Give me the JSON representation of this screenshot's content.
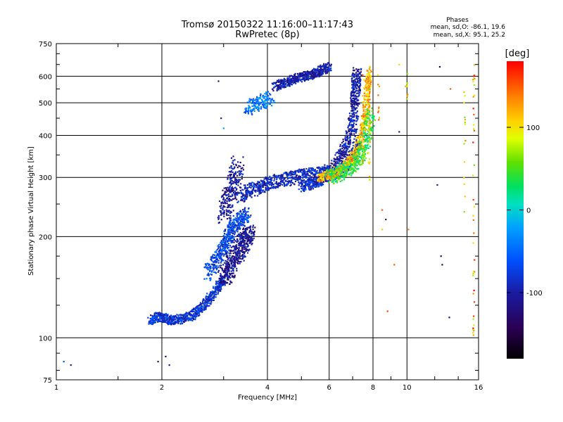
{
  "chart_data": {
    "type": "scatter",
    "title": "Tromsø 20150322 11:16:00–11:17:43",
    "subtitle": "RwPretec (8p)",
    "xlabel": "Frequency [MHz]",
    "ylabel": "Stationary phase Virtual Height [km]",
    "x_scale": "log",
    "y_scale": "log",
    "xlim": [
      1,
      16
    ],
    "ylim": [
      75,
      750
    ],
    "x_ticks": [
      1,
      2,
      4,
      6,
      8,
      10,
      16
    ],
    "x_tick_labels": [
      "1",
      "2",
      "4",
      "6",
      "8",
      "10",
      "16"
    ],
    "y_ticks": [
      75,
      100,
      200,
      300,
      400,
      500,
      600,
      750
    ],
    "y_tick_labels": [
      "75",
      "100",
      "200",
      "300",
      "400",
      "500",
      "600",
      "750"
    ],
    "grid": true,
    "stats": {
      "heading": "Phases",
      "line_o": "mean, sd,O: -86.1, 19.6",
      "line_x": "mean, sd,X: 95.1, 25.2"
    },
    "colorbar": {
      "label": "[deg]",
      "range": [
        -180,
        180
      ],
      "ticks": [
        100,
        0,
        -100
      ],
      "tick_labels": [
        "100",
        "0",
        "-100"
      ]
    },
    "traces": [
      {
        "x": [
          1.85,
          1.95,
          2.05,
          2.15,
          2.3,
          2.45,
          2.6,
          2.75,
          2.9,
          3.0
        ],
        "y": [
          112,
          116,
          114,
          113,
          114,
          117,
          123,
          132,
          142,
          150
        ],
        "phase": -80,
        "spread": 0.02
      },
      {
        "x": [
          2.7,
          2.85,
          3.0,
          3.1,
          3.2,
          3.35,
          3.5
        ],
        "y": [
          155,
          170,
          185,
          200,
          215,
          225,
          235
        ],
        "phase": -70,
        "spread": 0.03
      },
      {
        "x": [
          3.0,
          3.1,
          3.2,
          3.3,
          3.4,
          3.5,
          3.55
        ],
        "y": [
          150,
          160,
          170,
          180,
          190,
          200,
          205
        ],
        "phase": -110,
        "spread": 0.04
      },
      {
        "x": [
          3.0,
          3.1,
          3.2,
          3.3
        ],
        "y": [
          230,
          260,
          290,
          330
        ],
        "phase": -105,
        "spread": 0.04
      },
      {
        "x": [
          3.3,
          3.6,
          3.9,
          4.2,
          4.6,
          5.0,
          5.4,
          5.8,
          6.0
        ],
        "y": [
          265,
          275,
          285,
          292,
          298,
          303,
          306,
          308,
          312
        ],
        "phase": -90,
        "spread": 0.03
      },
      {
        "x": [
          5.0,
          5.4,
          5.8,
          6.2,
          6.6,
          7.0,
          7.3
        ],
        "y": [
          280,
          288,
          296,
          305,
          318,
          340,
          380
        ],
        "phase": -85,
        "spread": 0.02
      },
      {
        "x": [
          6.2,
          6.5,
          6.8,
          7.0,
          7.1,
          7.15,
          7.2
        ],
        "y": [
          320,
          345,
          380,
          430,
          500,
          560,
          620
        ],
        "phase": -100,
        "spread": 0.03
      },
      {
        "x": [
          5.6,
          6.0,
          6.4,
          6.8,
          7.2,
          7.5,
          7.7,
          7.8
        ],
        "y": [
          300,
          305,
          315,
          330,
          360,
          420,
          520,
          620
        ],
        "phase": 120,
        "spread": 0.02
      },
      {
        "x": [
          6.0,
          6.5,
          7.0,
          7.4,
          7.7,
          7.9
        ],
        "y": [
          300,
          310,
          325,
          350,
          400,
          470
        ],
        "phase": 40,
        "spread": 0.03
      },
      {
        "x": [
          4.2,
          4.5,
          4.8,
          5.1,
          5.4,
          5.7,
          6.0
        ],
        "y": [
          560,
          575,
          590,
          600,
          610,
          625,
          640
        ],
        "phase": -100,
        "spread": 0.02
      },
      {
        "x": [
          3.5,
          3.8,
          4.1
        ],
        "y": [
          480,
          500,
          520
        ],
        "phase": -40,
        "spread": 0.03
      }
    ],
    "points": [
      {
        "x": 1.05,
        "y": 85,
        "phase": -60
      },
      {
        "x": 1.1,
        "y": 83,
        "phase": -110
      },
      {
        "x": 1.95,
        "y": 85,
        "phase": -120
      },
      {
        "x": 2.05,
        "y": 88,
        "phase": -130
      },
      {
        "x": 2.1,
        "y": 83,
        "phase": -110
      },
      {
        "x": 2.9,
        "y": 580,
        "phase": -120
      },
      {
        "x": 2.95,
        "y": 450,
        "phase": -110
      },
      {
        "x": 3.0,
        "y": 420,
        "phase": -20
      },
      {
        "x": 8.5,
        "y": 210,
        "phase": 110
      },
      {
        "x": 8.5,
        "y": 240,
        "phase": 150
      },
      {
        "x": 8.7,
        "y": 225,
        "phase": -120
      },
      {
        "x": 8.8,
        "y": 120,
        "phase": 160
      },
      {
        "x": 9.2,
        "y": 165,
        "phase": 150
      },
      {
        "x": 9.5,
        "y": 410,
        "phase": -110
      },
      {
        "x": 10.1,
        "y": 210,
        "phase": 140
      },
      {
        "x": 9.9,
        "y": 560,
        "phase": 120
      },
      {
        "x": 9.5,
        "y": 650,
        "phase": 110
      },
      {
        "x": 12.4,
        "y": 640,
        "phase": -150
      },
      {
        "x": 12.2,
        "y": 285,
        "phase": -110
      },
      {
        "x": 12.5,
        "y": 175,
        "phase": -130
      },
      {
        "x": 12.6,
        "y": 165,
        "phase": -140
      },
      {
        "x": 13.2,
        "y": 115,
        "phase": -140
      },
      {
        "x": 13.3,
        "y": 550,
        "phase": 150
      },
      {
        "x": 15.5,
        "y": 600,
        "phase": 170
      },
      {
        "x": 15.5,
        "y": 430,
        "phase": 100
      }
    ],
    "columns": [
      {
        "x": 7.8,
        "y_min": 290,
        "y_max": 660,
        "count": 40,
        "phase_range": [
          60,
          140
        ]
      },
      {
        "x": 7.5,
        "y_min": 330,
        "y_max": 640,
        "count": 20,
        "phase_range": [
          80,
          150
        ]
      },
      {
        "x": 8.3,
        "y_min": 430,
        "y_max": 640,
        "count": 10,
        "phase_range": [
          100,
          160
        ]
      },
      {
        "x": 10.0,
        "y_min": 470,
        "y_max": 630,
        "count": 8,
        "phase_range": [
          60,
          130
        ]
      },
      {
        "x": 14.6,
        "y_min": 200,
        "y_max": 560,
        "count": 14,
        "phase_range": [
          60,
          140
        ]
      },
      {
        "x": 15.5,
        "y_min": 100,
        "y_max": 660,
        "count": 40,
        "phase_range": [
          60,
          180
        ]
      }
    ]
  }
}
